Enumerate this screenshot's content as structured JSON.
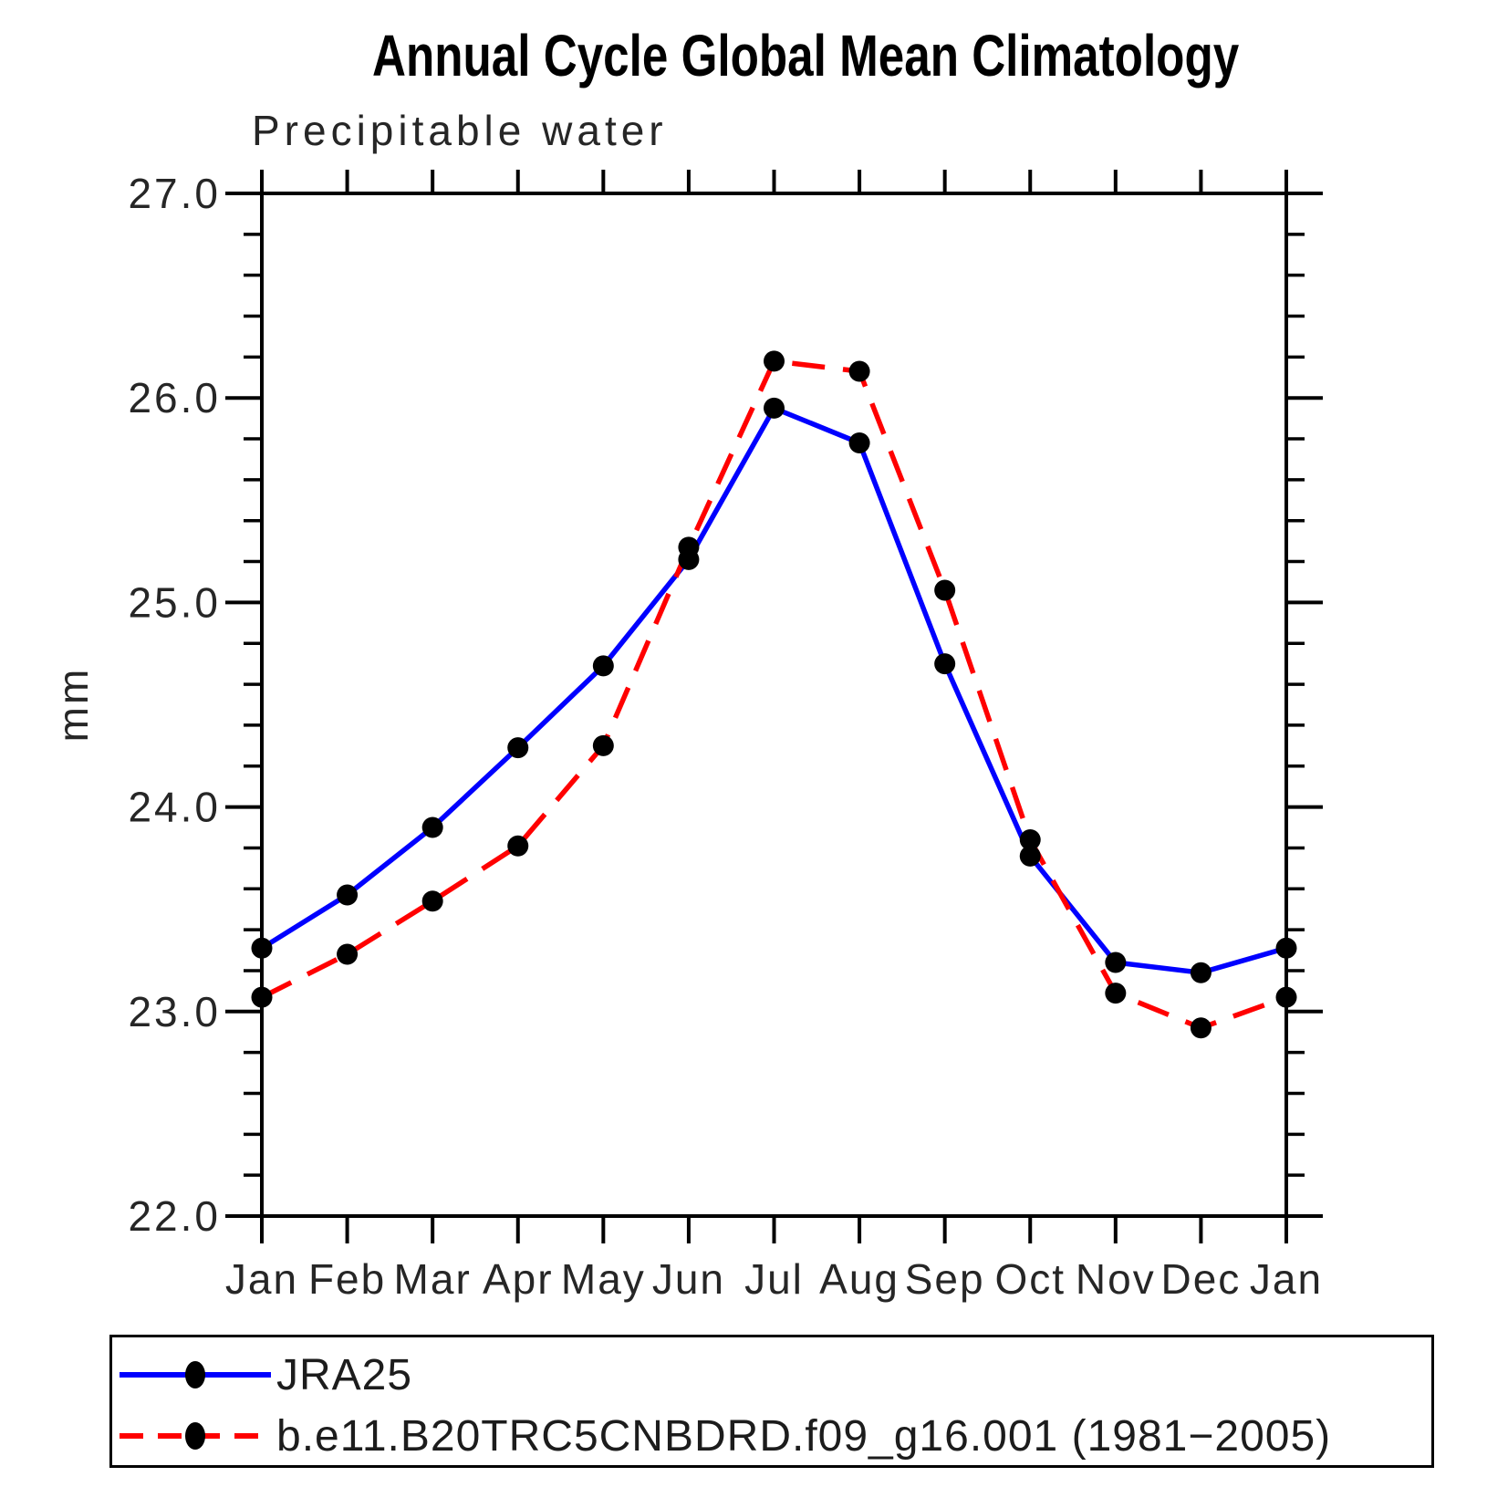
{
  "title": "Annual Cycle Global Mean Climatology",
  "subtitle": "Precipitable water",
  "ylabel": "mm",
  "background_color": "#ffffff",
  "axis_color": "#000000",
  "chart_data": {
    "type": "line",
    "categories": [
      "Jan",
      "Feb",
      "Mar",
      "Apr",
      "May",
      "Jun",
      "Jul",
      "Aug",
      "Sep",
      "Oct",
      "Nov",
      "Dec",
      "Jan"
    ],
    "series": [
      {
        "name": "JRA25",
        "color": "#0000ff",
        "line_style": "solid",
        "marker": "filled-circle",
        "marker_color": "#000000",
        "values": [
          23.31,
          23.57,
          23.9,
          24.29,
          24.69,
          25.21,
          25.95,
          25.78,
          24.7,
          23.76,
          23.24,
          23.19,
          23.31
        ]
      },
      {
        "name": "b.e11.B20TRC5CNBDRD.f09_g16.001 (1981−2005)",
        "color": "#ff0000",
        "line_style": "dashed",
        "marker": "filled-circle",
        "marker_color": "#000000",
        "values": [
          23.07,
          23.28,
          23.54,
          23.81,
          24.3,
          25.27,
          26.18,
          26.13,
          25.06,
          23.84,
          23.09,
          22.92,
          23.07
        ]
      }
    ],
    "ylim": [
      22.0,
      27.0
    ],
    "ytick_labels": [
      "22.0",
      "23.0",
      "24.0",
      "25.0",
      "26.0",
      "27.0"
    ],
    "ytick_major_step": 1.0,
    "ytick_minor_step": 0.2,
    "xlabel": "",
    "grid": false,
    "legend_position": "bottom-box"
  }
}
